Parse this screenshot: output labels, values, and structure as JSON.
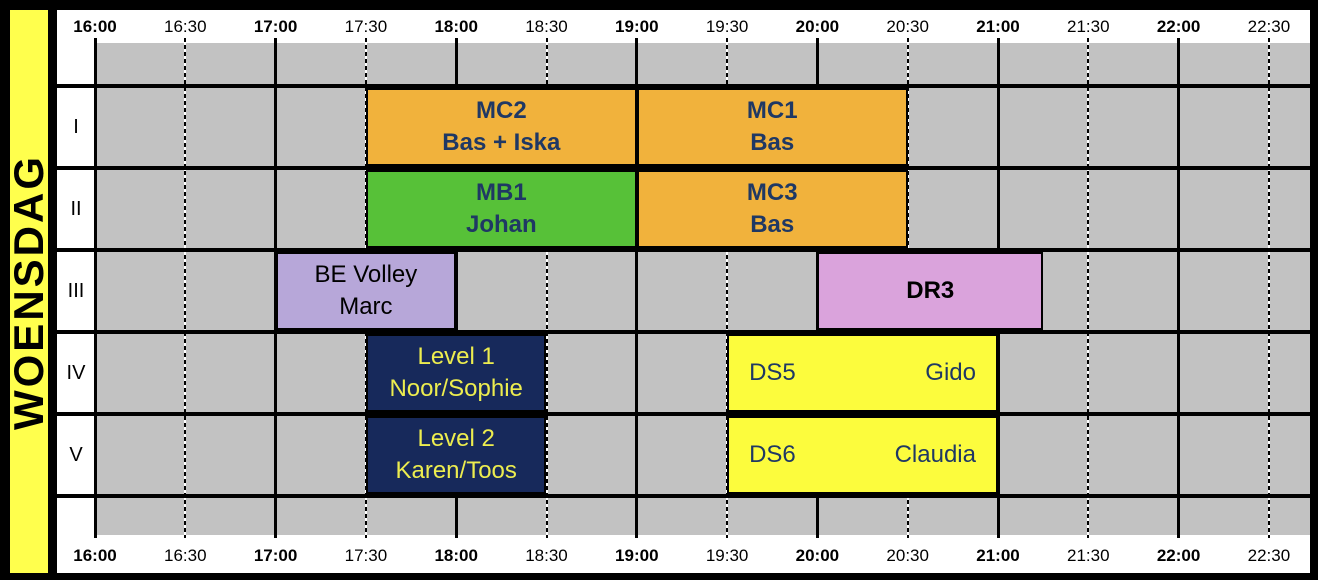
{
  "chart_data": {
    "type": "table",
    "subtype": "gantt-schedule",
    "day": "WOENSDAG",
    "time_axis": {
      "start": "16:00",
      "end": "22:30",
      "step_minutes": 30,
      "labels": [
        "16:00",
        "16:30",
        "17:00",
        "17:30",
        "18:00",
        "18:30",
        "19:00",
        "19:30",
        "20:00",
        "20:30",
        "21:00",
        "21:30",
        "22:00",
        "22:30"
      ],
      "shown_twice": "top and bottom of grid",
      "bold_labels_on_full_hours": true
    },
    "rows": [
      "I",
      "II",
      "III",
      "IV",
      "V"
    ],
    "blocks": [
      {
        "row": "I",
        "start": "17:30",
        "end": "19:00",
        "team": "MC2",
        "trainer": "Bas + Iska",
        "color": "orange",
        "layout": "stacked"
      },
      {
        "row": "I",
        "start": "19:00",
        "end": "20:30",
        "team": "MC1",
        "trainer": "Bas",
        "color": "orange",
        "layout": "stacked"
      },
      {
        "row": "II",
        "start": "17:30",
        "end": "19:00",
        "team": "MB1",
        "trainer": "Johan",
        "color": "green",
        "layout": "stacked"
      },
      {
        "row": "II",
        "start": "19:00",
        "end": "20:30",
        "team": "MC3",
        "trainer": "Bas",
        "color": "orange",
        "layout": "stacked"
      },
      {
        "row": "III",
        "start": "17:00",
        "end": "18:00",
        "team": "BE Volley",
        "trainer": "Marc",
        "color": "lavender",
        "layout": "stacked"
      },
      {
        "row": "III",
        "start": "20:00",
        "end": "21:15",
        "team": "DR3",
        "trainer": "",
        "color": "pink",
        "layout": "single"
      },
      {
        "row": "IV",
        "start": "17:30",
        "end": "18:30",
        "team": "Level 1",
        "trainer": "Noor/Sophie",
        "color": "navy",
        "layout": "stacked"
      },
      {
        "row": "IV",
        "start": "19:30",
        "end": "21:00",
        "team": "DS5",
        "trainer": "Gido",
        "color": "yellow",
        "layout": "split"
      },
      {
        "row": "V",
        "start": "17:30",
        "end": "18:30",
        "team": "Level 2",
        "trainer": "Karen/Toos",
        "color": "navy",
        "layout": "stacked"
      },
      {
        "row": "V",
        "start": "19:30",
        "end": "21:00",
        "team": "DS6",
        "trainer": "Claudia",
        "color": "yellow",
        "layout": "split"
      }
    ]
  },
  "palette": {
    "board_border": "#000000",
    "day_strip_bg": "#FFFF4D",
    "grid_cell_gray": "#C2C2C2",
    "header_bg": "#FFFFFF",
    "block_orange": "#F1B23C",
    "block_green": "#57C138",
    "block_lavender": "#B7A7D9",
    "block_pink": "#DAA3DC",
    "block_navy": "#17295B",
    "block_yellow": "#FCFC3D",
    "text_navy": "#1F3864",
    "text_yellow": "#EDED4F",
    "text_black": "#000000"
  }
}
